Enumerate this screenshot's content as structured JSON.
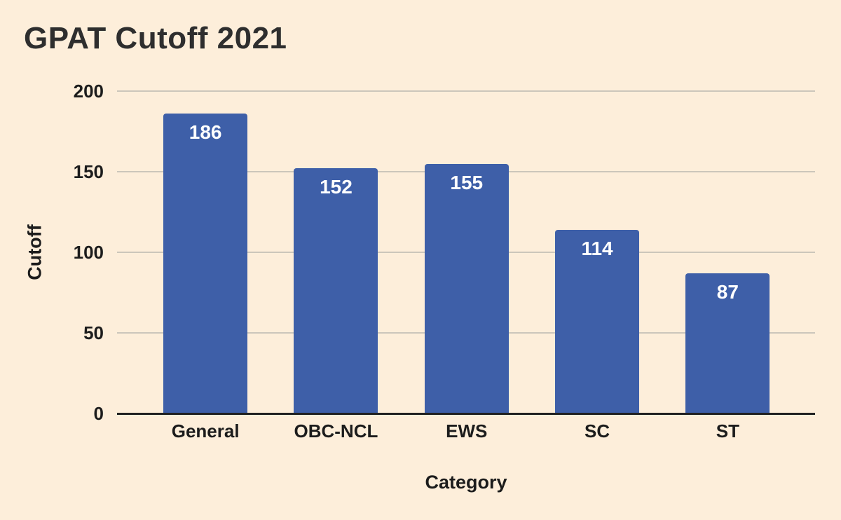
{
  "page": {
    "title": "GPAT Cutoff 2021"
  },
  "chart_data": {
    "type": "bar",
    "title": "GPAT Cutoff 2021",
    "categories": [
      "General",
      "OBC-NCL",
      "EWS",
      "SC",
      "ST"
    ],
    "values": [
      186,
      152,
      155,
      114,
      87
    ],
    "xlabel": "Category",
    "ylabel": "Cutoff",
    "ylim": [
      0,
      200
    ],
    "yticks": [
      200,
      150,
      100,
      50,
      0
    ],
    "grid": true,
    "legend_position": "none",
    "data_labels": "inside-top",
    "colors": {
      "bar": "#3e5fa8",
      "background": "#fdeeda",
      "data_label": "#ffffff",
      "axis_text": "#1c1c1c",
      "title_text": "#2e2e2e",
      "gridline": "#ccc6bb",
      "baseline": "#212121"
    }
  }
}
